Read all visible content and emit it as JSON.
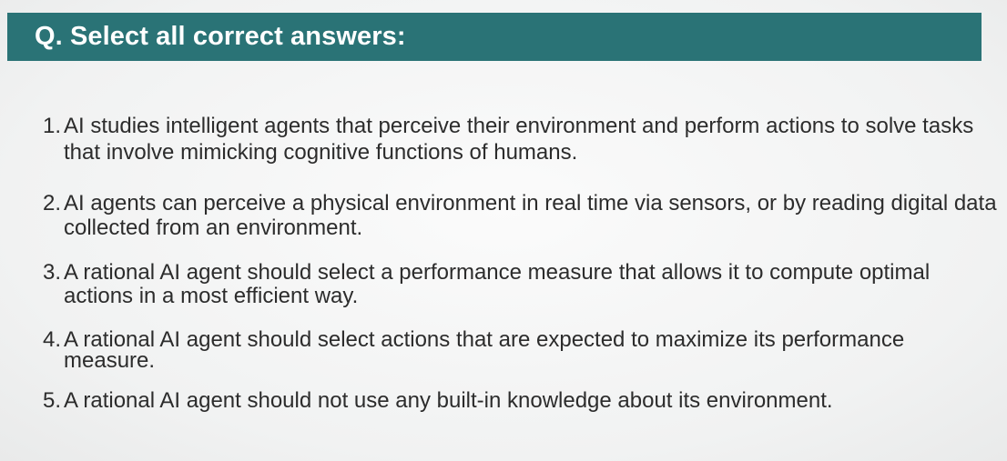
{
  "header": {
    "title": "Q. Select all correct answers:"
  },
  "answers": [
    {
      "number": "1.",
      "text": "AI studies intelligent agents that perceive their environment and perform actions to solve tasks that involve mimicking cognitive functions of humans."
    },
    {
      "number": "2.",
      "text": "AI agents can perceive a physical environment in real time via sensors, or by reading digital data collected from an environment."
    },
    {
      "number": "3.",
      "text": "A rational AI agent should select a performance measure that allows it to compute optimal actions in a most efficient way."
    },
    {
      "number": "4.",
      "text": "A rational AI agent should select actions that are expected to maximize its performance measure."
    },
    {
      "number": "5.",
      "text": "A rational AI agent should not use any built-in knowledge about its environment."
    }
  ],
  "colors": {
    "header_bg": "#2a7376",
    "header_text": "#ffffff",
    "body_text": "#2c2c2c"
  }
}
